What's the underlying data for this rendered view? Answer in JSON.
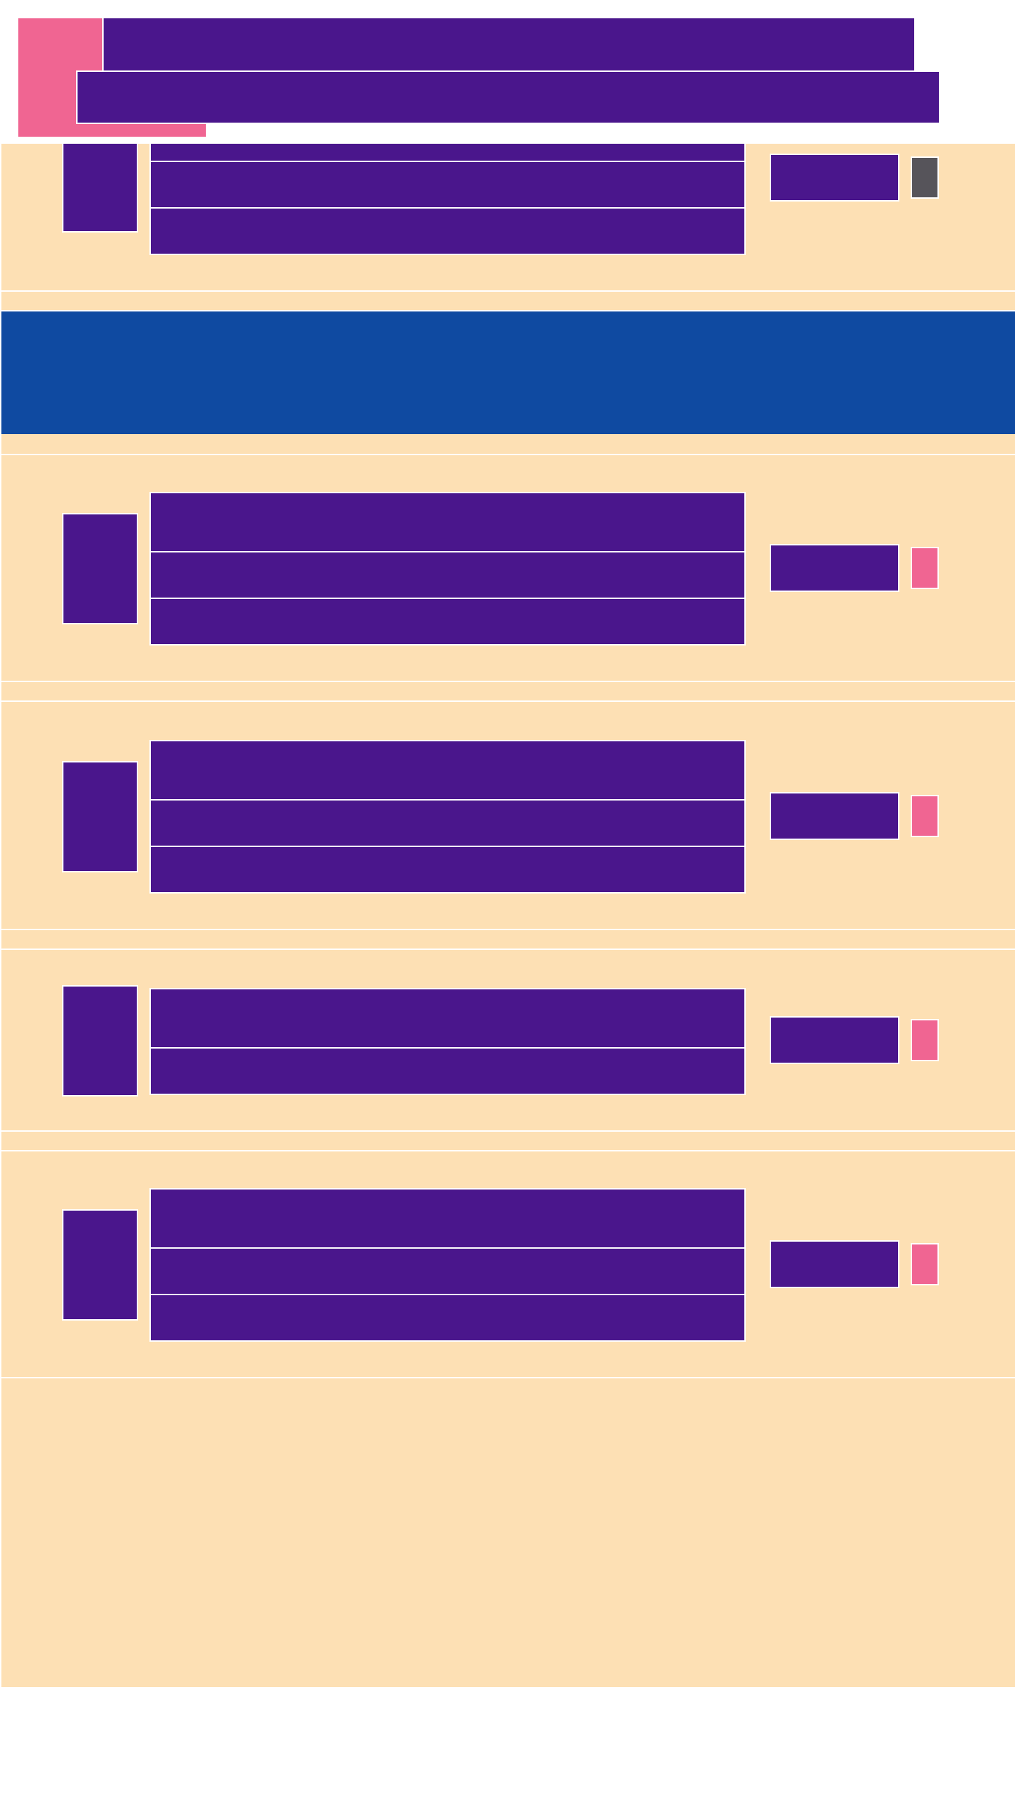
{
  "colors": {
    "primary": "#4a168c",
    "accent": "#f06592",
    "surface": "#fde0b4",
    "banner": "#0f4aa1",
    "inactive": "#56545a"
  },
  "toggles": {
    "row_1": "inactive",
    "row_2": "active",
    "row_3": "active",
    "row_4": "active",
    "row_5": "active"
  }
}
